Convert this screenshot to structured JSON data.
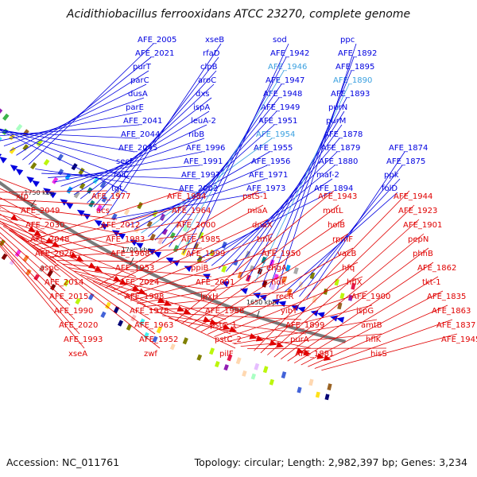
{
  "title": "Acidithiobacillus ferrooxidans ATCC 23270, complete genome",
  "accession": "Accession: NC_011761",
  "summary": "Topology: circular; Length: 2,982,397 bp; Genes: 3,234",
  "colors": {
    "forward": "#0000e0",
    "reverse": "#e00000",
    "highlight": "#3aa0e0",
    "backbone": "#7a7a7a"
  },
  "kbp_marks": [
    "1850 kbp",
    "1800 kbp",
    "1750 kbp",
    "1700 kbp",
    "1650 kbp"
  ],
  "forward_labels": [
    "tgt",
    "folC",
    "secF",
    "AFE_2045",
    "AFE_2044",
    "AFE_2041",
    "parE",
    "dusA",
    "parC",
    "purT",
    "AFE_2021",
    "AFE_2005",
    "AFE_2002",
    "AFE_1997",
    "AFE_1991",
    "AFE_1996",
    "ribB",
    "leuA-2",
    "ispA",
    "dxs",
    "aroC",
    "clpB",
    "rfaD",
    "xseB",
    "AFE_1973",
    "AFE_1971",
    "AFE_1956",
    "AFE_1955",
    "AFE_1954",
    "AFE_1951",
    "AFE_1949",
    "AFE_1948",
    "AFE_1947",
    "AFE_1946",
    "AFE_1942",
    "sod",
    "AFE_1894",
    "maf-2",
    "AFE_1880",
    "AFE_1879",
    "AFE_1878",
    "purM",
    "purN",
    "AFE_1893",
    "AFE_1890",
    "AFE_1895",
    "AFE_1892",
    "ppc",
    "folD",
    "ppk",
    "AFE_1875",
    "AFE_1874"
  ],
  "highlight_labels": [
    "AFE_1954",
    "AFE_1946",
    "AFE_1890"
  ],
  "reverse_labels": [
    "xfp",
    "AFE_2049",
    "AFE_2030",
    "AFE_2048",
    "AFE_2026",
    "aspC",
    "AFE_2014",
    "AFE_2015",
    "AFE_1990",
    "AFE_2020",
    "AFE_1993",
    "xseA",
    "AFE_1977",
    "acs",
    "AFE_2012",
    "AFE_1983",
    "AFE_1968",
    "AFE_1953",
    "AFE_2024",
    "AFE_1998",
    "AFE_1978",
    "AFE_1963",
    "AFE_1952",
    "zwf",
    "AFE_1984",
    "AFE_1964",
    "AFE_2000",
    "AFE_1985",
    "AFE_1999",
    "ppiB",
    "AFE_2001",
    "lpxH",
    "AFE_1988",
    "pstC_1",
    "pstC_2",
    "pilF",
    "pstS-1",
    "miaA",
    "dnaX",
    "tmk",
    "AFE_1950",
    "engA",
    "ndk",
    "recR",
    "yibY",
    "AFE_1899",
    "purA",
    "AFE_1881",
    "AFE_1943",
    "mutL",
    "holB",
    "rpmF",
    "vacB",
    "hfq",
    "hflX",
    "AFE_1900",
    "ispG",
    "amtB",
    "hflK",
    "hisS",
    "AFE_1944",
    "AFE_1923",
    "AFE_1901",
    "pepN",
    "phhB",
    "AFE_1862",
    "tkt-1",
    "AFE_1835",
    "AFE_1863",
    "AFE_1837",
    "AFE_1945"
  ]
}
